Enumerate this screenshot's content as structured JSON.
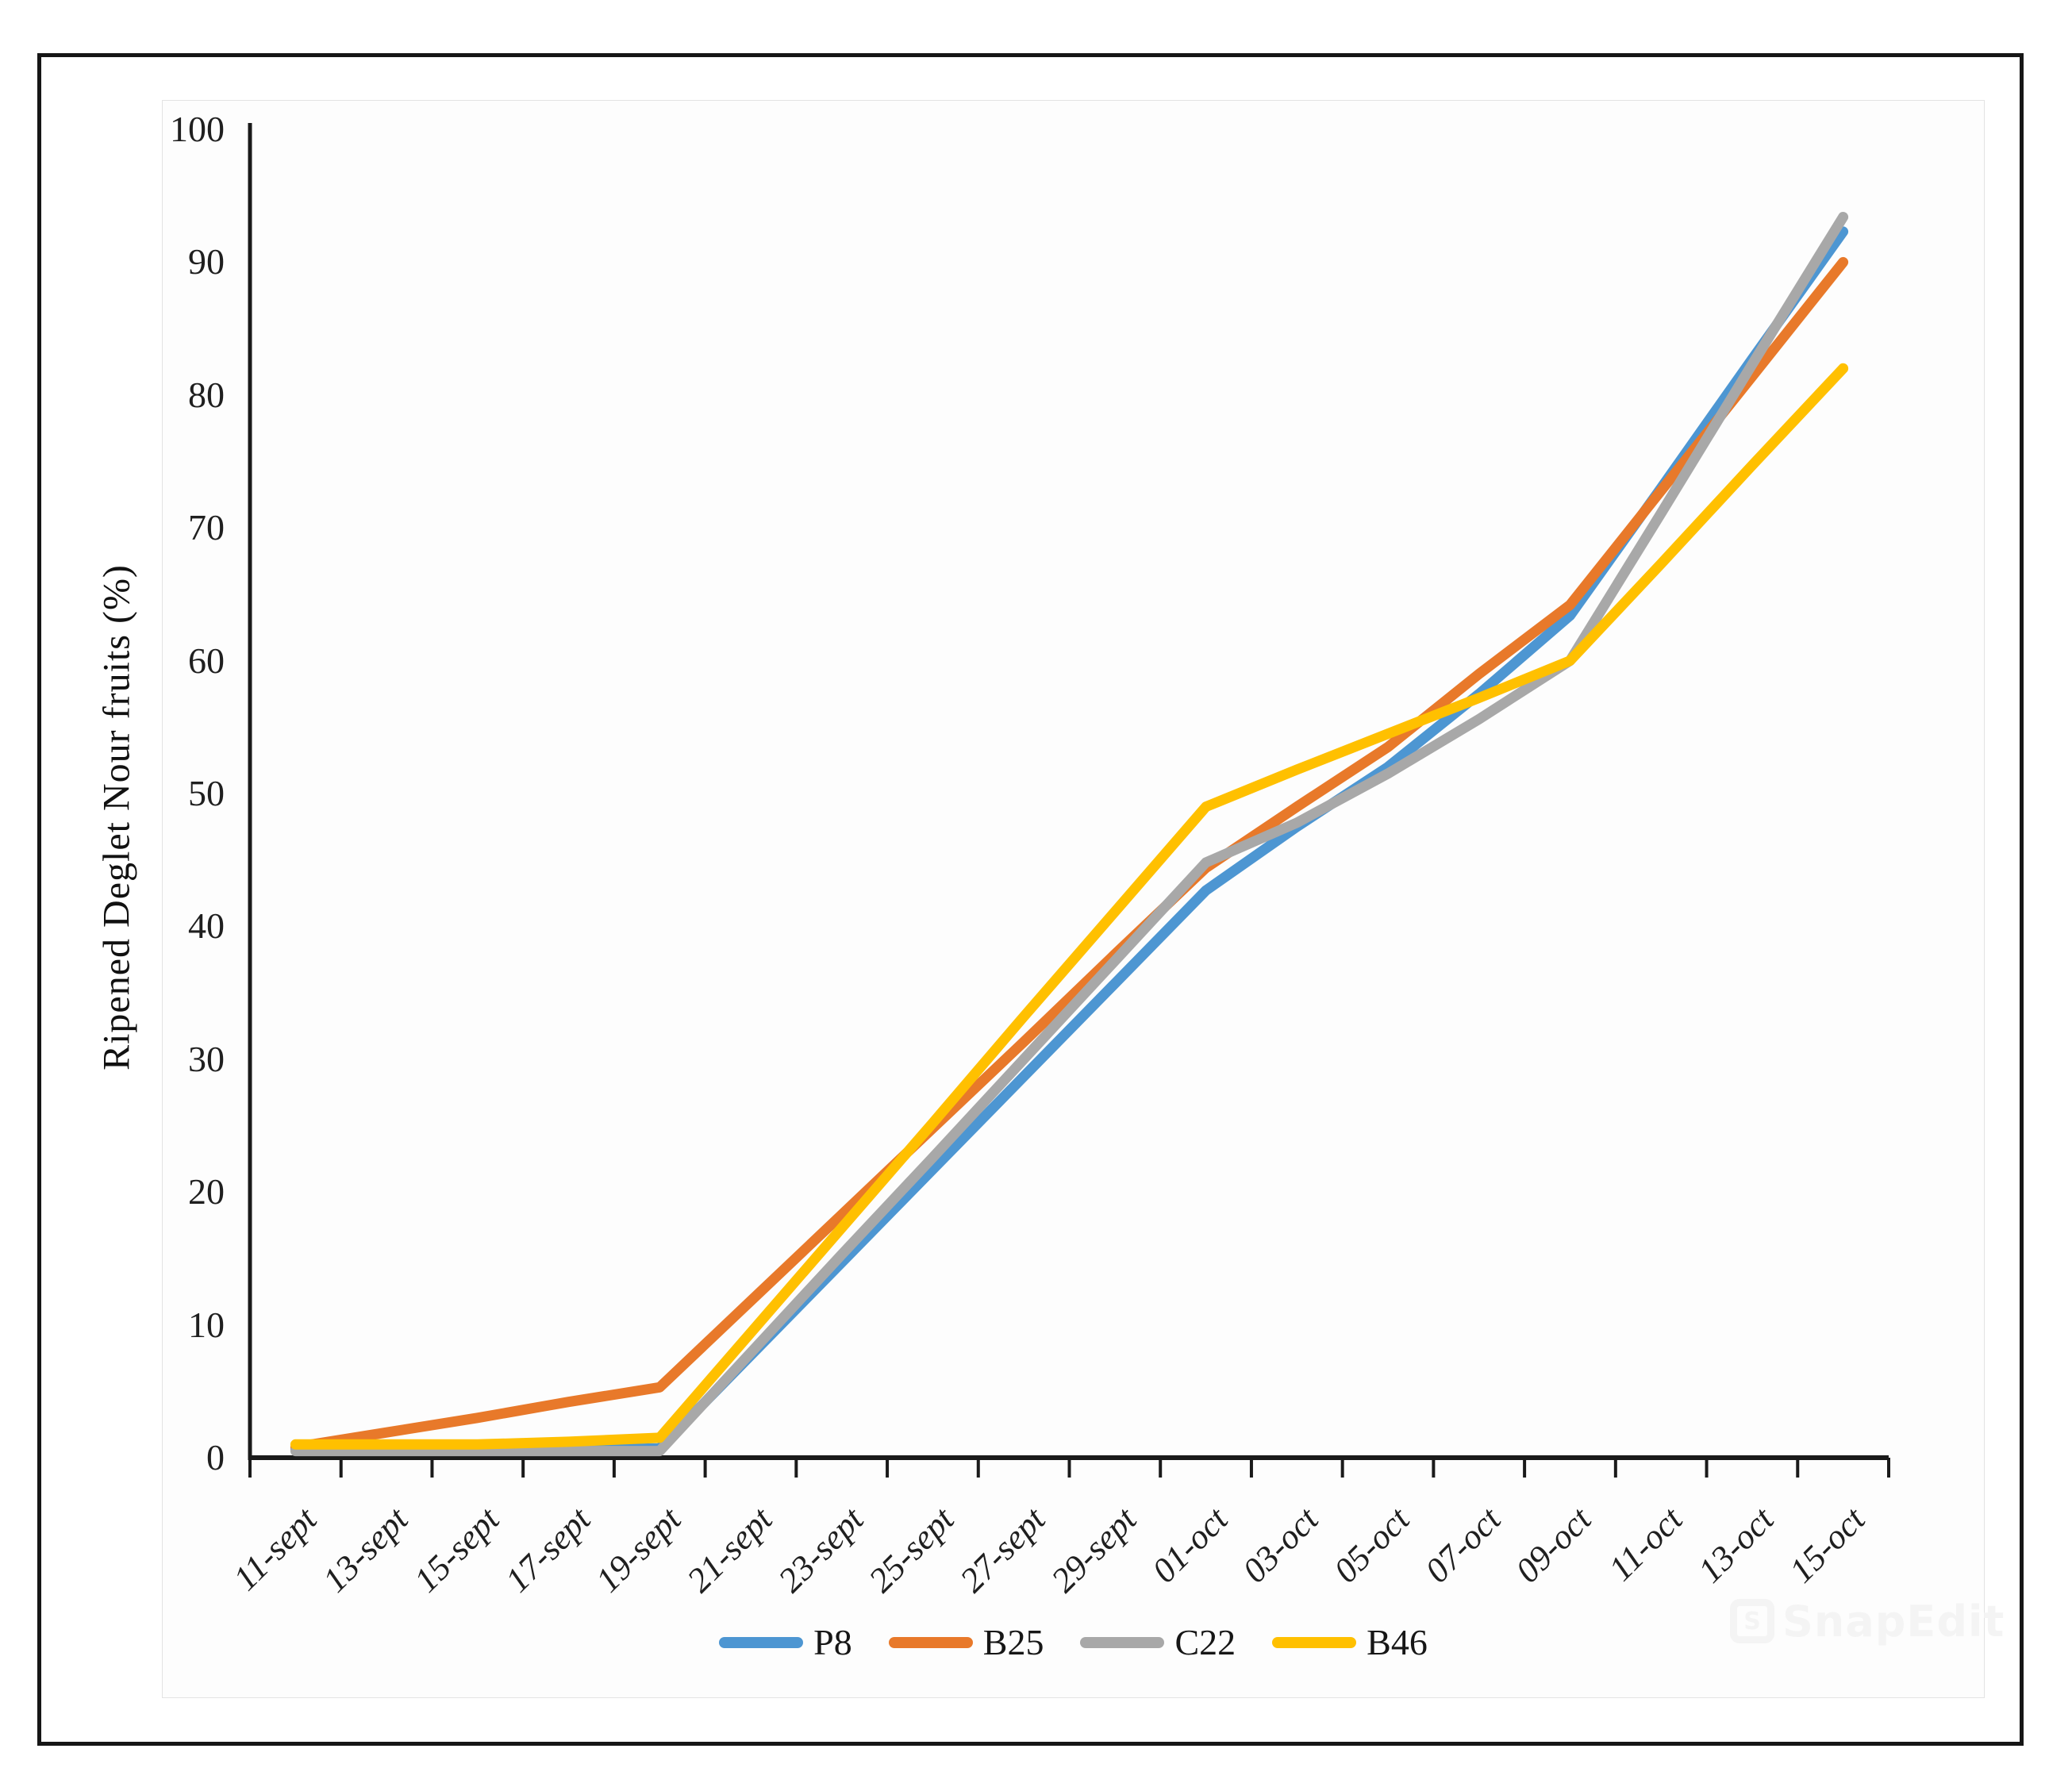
{
  "figure": {
    "watermark": {
      "logo_letter": "S",
      "text": "SnapEdit"
    }
  },
  "chart_data": {
    "type": "line",
    "title": "",
    "xlabel": "",
    "ylabel": "Ripened Deglet Nour fruits (%)",
    "ylim": [
      0,
      100
    ],
    "yticks": [
      0,
      10,
      20,
      30,
      40,
      50,
      60,
      70,
      80,
      90,
      100
    ],
    "grid": false,
    "legend_position": "bottom-center",
    "axis_color": "#1a1a1a",
    "categories": [
      "11-sept",
      "13-sept",
      "15-sept",
      "17-sept",
      "19-sept",
      "21-sept",
      "23-sept",
      "25-sept",
      "27-sept",
      "29-sept",
      "01-oct",
      "03-oct",
      "05-oct",
      "07-oct",
      "09-oct",
      "11-oct",
      "13-oct",
      "15-oct"
    ],
    "series": [
      {
        "name": "P8",
        "color": "#4D96D2",
        "values": [
          0.6,
          0.6,
          0.6,
          0.6,
          0.7,
          7.7,
          14.7,
          21.7,
          28.7,
          35.7,
          42.7,
          47.5,
          52.0,
          57.5,
          63.4,
          73.0,
          82.7,
          92.3
        ]
      },
      {
        "name": "B25",
        "color": "#E8792A",
        "values": [
          0.8,
          1.9,
          3.0,
          4.2,
          5.3,
          11.8,
          18.3,
          24.8,
          31.3,
          37.9,
          44.4,
          49.0,
          53.5,
          59.0,
          64.2,
          72.8,
          81.4,
          90.0
        ]
      },
      {
        "name": "C22",
        "color": "#A8A8A8",
        "values": [
          0.5,
          0.5,
          0.5,
          0.5,
          0.5,
          7.9,
          15.3,
          22.6,
          30.0,
          37.4,
          44.8,
          47.8,
          51.5,
          55.6,
          60.0,
          71.1,
          82.3,
          93.4
        ]
      },
      {
        "name": "B46",
        "color": "#FFC000",
        "values": [
          1.0,
          1.0,
          1.0,
          1.2,
          1.5,
          9.4,
          17.3,
          25.2,
          33.2,
          41.1,
          49.0,
          51.8,
          54.5,
          57.2,
          60.0,
          67.3,
          74.7,
          82.0
        ]
      }
    ]
  }
}
